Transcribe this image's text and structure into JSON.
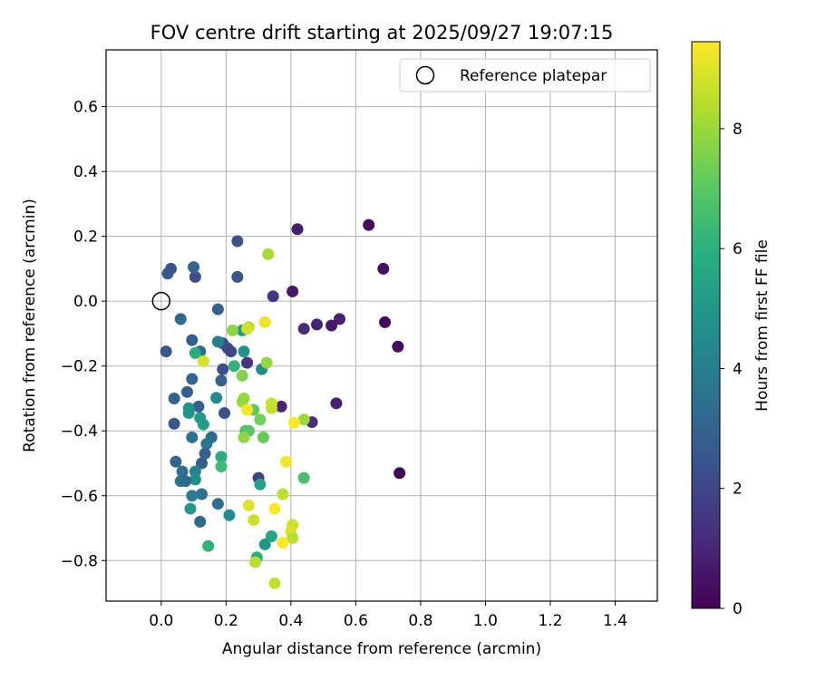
{
  "chart_data": {
    "type": "scatter",
    "title": "FOV centre drift starting at 2025/09/27 19:07:15",
    "xlabel": "Angular distance from reference (arcmin)",
    "ylabel": "Rotation from reference (arcmin)",
    "xlim": [
      -0.17,
      1.53
    ],
    "ylim": [
      -0.925,
      0.775
    ],
    "xticks": [
      0.0,
      0.2,
      0.4,
      0.6,
      0.8,
      1.0,
      1.2,
      1.4
    ],
    "xtick_labels": [
      "0.0",
      "0.2",
      "0.4",
      "0.6",
      "0.8",
      "1.0",
      "1.2",
      "1.4"
    ],
    "yticks": [
      -0.8,
      -0.6,
      -0.4,
      -0.2,
      0.0,
      0.2,
      0.4,
      0.6
    ],
    "ytick_labels": [
      "−0.8",
      "−0.6",
      "−0.4",
      "−0.2",
      "0.0",
      "0.2",
      "0.4",
      "0.6"
    ],
    "grid": true,
    "legend": {
      "position": "top-right",
      "label": "Reference platepar"
    },
    "reference_point": {
      "x": 0.0,
      "y": 0.0
    },
    "colorbar": {
      "label": "Hours from first FF file",
      "min": 0,
      "max": 9.45,
      "colormap": "viridis",
      "ticks": [
        0,
        2,
        4,
        6,
        8
      ],
      "tick_labels": [
        "0",
        "2",
        "4",
        "6",
        "8"
      ]
    },
    "points": [
      {
        "x": 0.64,
        "y": 0.235,
        "t": 0.3
      },
      {
        "x": 0.42,
        "y": 0.222,
        "t": 0.8
      },
      {
        "x": 0.685,
        "y": 0.1,
        "t": 0.4
      },
      {
        "x": 0.405,
        "y": 0.03,
        "t": 0.6
      },
      {
        "x": 0.55,
        "y": -0.055,
        "t": 0.9
      },
      {
        "x": 0.69,
        "y": -0.065,
        "t": 0.2
      },
      {
        "x": 0.48,
        "y": -0.072,
        "t": 0.9
      },
      {
        "x": 0.525,
        "y": -0.075,
        "t": 0.7
      },
      {
        "x": 0.44,
        "y": -0.085,
        "t": 1.1
      },
      {
        "x": 0.73,
        "y": -0.14,
        "t": 0.3
      },
      {
        "x": 0.54,
        "y": -0.315,
        "t": 0.8
      },
      {
        "x": 0.37,
        "y": -0.325,
        "t": 1.0
      },
      {
        "x": 0.465,
        "y": -0.373,
        "t": 1.2
      },
      {
        "x": 0.735,
        "y": -0.53,
        "t": 0.1
      },
      {
        "x": 0.265,
        "y": -0.19,
        "t": 1.5
      },
      {
        "x": 0.345,
        "y": 0.015,
        "t": 1.5
      },
      {
        "x": 0.3,
        "y": -0.545,
        "t": 1.8
      },
      {
        "x": 0.235,
        "y": 0.185,
        "t": 2.3
      },
      {
        "x": 0.03,
        "y": 0.1,
        "t": 2.5
      },
      {
        "x": 0.02,
        "y": 0.085,
        "t": 2.6
      },
      {
        "x": 0.105,
        "y": 0.075,
        "t": 2.2
      },
      {
        "x": 0.235,
        "y": 0.075,
        "t": 2.5
      },
      {
        "x": 0.1,
        "y": 0.105,
        "t": 3.1
      },
      {
        "x": 0.06,
        "y": -0.055,
        "t": 3.3
      },
      {
        "x": 0.175,
        "y": -0.025,
        "t": 2.9
      },
      {
        "x": 0.015,
        "y": -0.155,
        "t": 2.6
      },
      {
        "x": 0.095,
        "y": -0.12,
        "t": 2.8
      },
      {
        "x": 0.19,
        "y": -0.13,
        "t": 2.4
      },
      {
        "x": 0.205,
        "y": -0.145,
        "t": 2.2
      },
      {
        "x": 0.215,
        "y": -0.155,
        "t": 2.0
      },
      {
        "x": 0.12,
        "y": -0.155,
        "t": 3.3
      },
      {
        "x": 0.19,
        "y": -0.21,
        "t": 2.3
      },
      {
        "x": 0.185,
        "y": -0.245,
        "t": 2.9
      },
      {
        "x": 0.095,
        "y": -0.24,
        "t": 3.1
      },
      {
        "x": 0.08,
        "y": -0.28,
        "t": 2.7
      },
      {
        "x": 0.04,
        "y": -0.3,
        "t": 3.0
      },
      {
        "x": 0.195,
        "y": -0.345,
        "t": 2.3
      },
      {
        "x": 0.04,
        "y": -0.378,
        "t": 2.6
      },
      {
        "x": 0.115,
        "y": -0.325,
        "t": 2.9
      },
      {
        "x": 0.085,
        "y": -0.33,
        "t": 4.7
      },
      {
        "x": 0.085,
        "y": -0.345,
        "t": 4.9
      },
      {
        "x": 0.12,
        "y": -0.36,
        "t": 5.0
      },
      {
        "x": 0.13,
        "y": -0.38,
        "t": 5.2
      },
      {
        "x": 0.155,
        "y": -0.42,
        "t": 3.3
      },
      {
        "x": 0.095,
        "y": -0.42,
        "t": 3.5
      },
      {
        "x": 0.14,
        "y": -0.44,
        "t": 3.7
      },
      {
        "x": 0.135,
        "y": -0.47,
        "t": 3.0
      },
      {
        "x": 0.125,
        "y": -0.5,
        "t": 2.8
      },
      {
        "x": 0.045,
        "y": -0.495,
        "t": 3.0
      },
      {
        "x": 0.065,
        "y": -0.525,
        "t": 3.4
      },
      {
        "x": 0.105,
        "y": -0.525,
        "t": 4.2
      },
      {
        "x": 0.105,
        "y": -0.55,
        "t": 4.6
      },
      {
        "x": 0.06,
        "y": -0.555,
        "t": 3.6
      },
      {
        "x": 0.075,
        "y": -0.555,
        "t": 3.2
      },
      {
        "x": 0.125,
        "y": -0.595,
        "t": 3.5
      },
      {
        "x": 0.095,
        "y": -0.6,
        "t": 4.0
      },
      {
        "x": 0.175,
        "y": -0.625,
        "t": 3.4
      },
      {
        "x": 0.09,
        "y": -0.64,
        "t": 5.0
      },
      {
        "x": 0.21,
        "y": -0.66,
        "t": 4.5
      },
      {
        "x": 0.12,
        "y": -0.68,
        "t": 3.3
      },
      {
        "x": 0.145,
        "y": -0.755,
        "t": 6.1
      },
      {
        "x": 0.175,
        "y": -0.125,
        "t": 4.2
      },
      {
        "x": 0.255,
        "y": -0.155,
        "t": 4.8
      },
      {
        "x": 0.25,
        "y": -0.09,
        "t": 5.2
      },
      {
        "x": 0.31,
        "y": -0.21,
        "t": 4.5
      },
      {
        "x": 0.17,
        "y": -0.298,
        "t": 4.5
      },
      {
        "x": 0.185,
        "y": -0.48,
        "t": 5.8
      },
      {
        "x": 0.185,
        "y": -0.51,
        "t": 6.4
      },
      {
        "x": 0.225,
        "y": -0.2,
        "t": 6.1
      },
      {
        "x": 0.105,
        "y": -0.16,
        "t": 5.8
      },
      {
        "x": 0.305,
        "y": -0.565,
        "t": 5.4
      },
      {
        "x": 0.32,
        "y": -0.75,
        "t": 4.9
      },
      {
        "x": 0.34,
        "y": -0.725,
        "t": 5.6
      },
      {
        "x": 0.295,
        "y": -0.79,
        "t": 5.9
      },
      {
        "x": 0.44,
        "y": -0.545,
        "t": 6.6
      },
      {
        "x": 0.26,
        "y": -0.4,
        "t": 6.7
      },
      {
        "x": 0.27,
        "y": -0.4,
        "t": 6.9
      },
      {
        "x": 0.255,
        "y": -0.42,
        "t": 7.8
      },
      {
        "x": 0.315,
        "y": -0.42,
        "t": 7.2
      },
      {
        "x": 0.305,
        "y": -0.365,
        "t": 7.4
      },
      {
        "x": 0.25,
        "y": -0.31,
        "t": 8.0
      },
      {
        "x": 0.255,
        "y": -0.3,
        "t": 7.9
      },
      {
        "x": 0.285,
        "y": -0.335,
        "t": 7.1
      },
      {
        "x": 0.25,
        "y": -0.23,
        "t": 7.6
      },
      {
        "x": 0.22,
        "y": -0.09,
        "t": 7.8
      },
      {
        "x": 0.27,
        "y": -0.08,
        "t": 8.4
      },
      {
        "x": 0.265,
        "y": -0.085,
        "t": 8.8
      },
      {
        "x": 0.325,
        "y": -0.19,
        "t": 7.9
      },
      {
        "x": 0.33,
        "y": 0.145,
        "t": 8.2
      },
      {
        "x": 0.13,
        "y": -0.185,
        "t": 8.9
      },
      {
        "x": 0.34,
        "y": -0.315,
        "t": 8.7
      },
      {
        "x": 0.34,
        "y": -0.33,
        "t": 8.6
      },
      {
        "x": 0.44,
        "y": -0.365,
        "t": 8.0
      },
      {
        "x": 0.265,
        "y": -0.335,
        "t": 9.3
      },
      {
        "x": 0.41,
        "y": -0.375,
        "t": 9.4
      },
      {
        "x": 0.385,
        "y": -0.495,
        "t": 9.3
      },
      {
        "x": 0.32,
        "y": -0.065,
        "t": 9.2
      },
      {
        "x": 0.375,
        "y": -0.595,
        "t": 8.5
      },
      {
        "x": 0.27,
        "y": -0.63,
        "t": 9.0
      },
      {
        "x": 0.35,
        "y": -0.64,
        "t": 9.4
      },
      {
        "x": 0.285,
        "y": -0.675,
        "t": 8.7
      },
      {
        "x": 0.405,
        "y": -0.69,
        "t": 8.8
      },
      {
        "x": 0.4,
        "y": -0.71,
        "t": 8.9
      },
      {
        "x": 0.405,
        "y": -0.73,
        "t": 8.4
      },
      {
        "x": 0.375,
        "y": -0.745,
        "t": 9.4
      },
      {
        "x": 0.29,
        "y": -0.805,
        "t": 8.5
      },
      {
        "x": 0.35,
        "y": -0.87,
        "t": 8.6
      }
    ]
  }
}
